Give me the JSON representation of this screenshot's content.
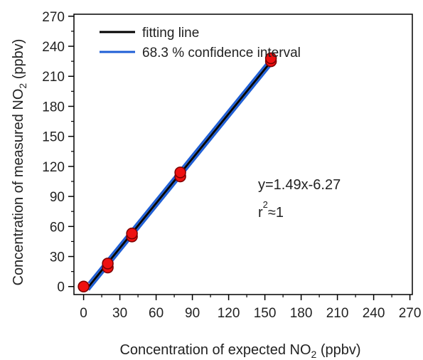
{
  "chart_data": {
    "type": "scatter",
    "xlabel": {
      "pre": "Concentration of expected NO",
      "sub": "2",
      "post": " (ppbv)"
    },
    "ylabel": {
      "pre": "Concentration of measured NO",
      "sub": "2",
      "post": " (ppbv)"
    },
    "xlim": [
      -8,
      272
    ],
    "ylim": [
      -8,
      272
    ],
    "xticks": [
      "0",
      "30",
      "60",
      "90",
      "120",
      "150",
      "180",
      "210",
      "240",
      "270"
    ],
    "yticks": [
      "0",
      "30",
      "60",
      "90",
      "120",
      "150",
      "180",
      "210",
      "240",
      "270"
    ],
    "grid": false,
    "legend": {
      "position": "top-left",
      "entries": [
        {
          "label": "fitting line",
          "color": "#000000"
        },
        {
          "label": "68.3 % confidence interval",
          "color": "#1f5fd6"
        }
      ]
    },
    "fit": {
      "slope": 1.49,
      "intercept": -6.27,
      "x_range": [
        4.2,
        155
      ]
    },
    "confidence_offset": 3.5,
    "points": [
      {
        "x": 0,
        "y": 0
      },
      {
        "x": 20,
        "y": 19
      },
      {
        "x": 20,
        "y": 23
      },
      {
        "x": 40,
        "y": 50
      },
      {
        "x": 40,
        "y": 53
      },
      {
        "x": 80,
        "y": 110
      },
      {
        "x": 80,
        "y": 114
      },
      {
        "x": 155,
        "y": 225
      },
      {
        "x": 155,
        "y": 228
      }
    ],
    "annotation": {
      "equation": "y=1.49x-6.27",
      "r_base": "r",
      "r_sup": "2",
      "r_rest": "≈1"
    },
    "colors": {
      "point_fill": "#ee1111",
      "point_stroke": "#7a0000",
      "fit_line": "#000000",
      "ci_line": "#1f5fd6"
    }
  }
}
